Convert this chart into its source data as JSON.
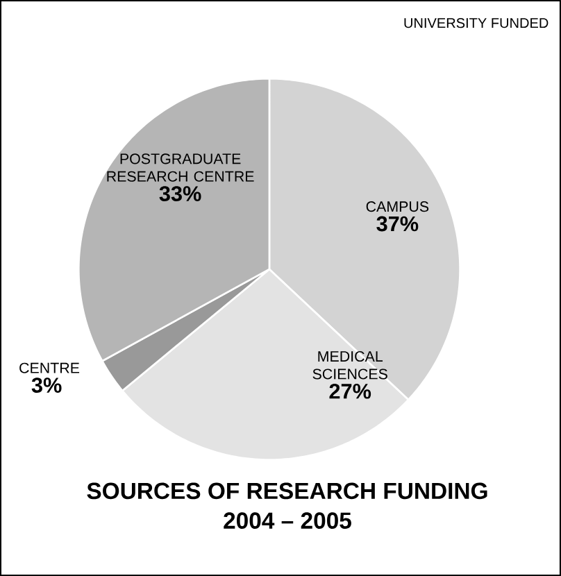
{
  "chart_data": {
    "type": "pie",
    "title": "SOURCES OF RESEARCH FUNDING",
    "subtitle": "2004 – 2005",
    "categories": [
      "CAMPUS",
      "MEDICAL SCIENCES",
      "CENTRE",
      "POSTGRADUATE RESEARCH CENTRE"
    ],
    "values": [
      37,
      27,
      3,
      33
    ],
    "value_labels": [
      "37%",
      "27%",
      "3%",
      "33%"
    ],
    "colors": [
      "#d3d3d3",
      "#e3e3e3",
      "#999999",
      "#b5b5b5"
    ],
    "annotations": [
      "UNIVERSITY FUNDED"
    ]
  }
}
